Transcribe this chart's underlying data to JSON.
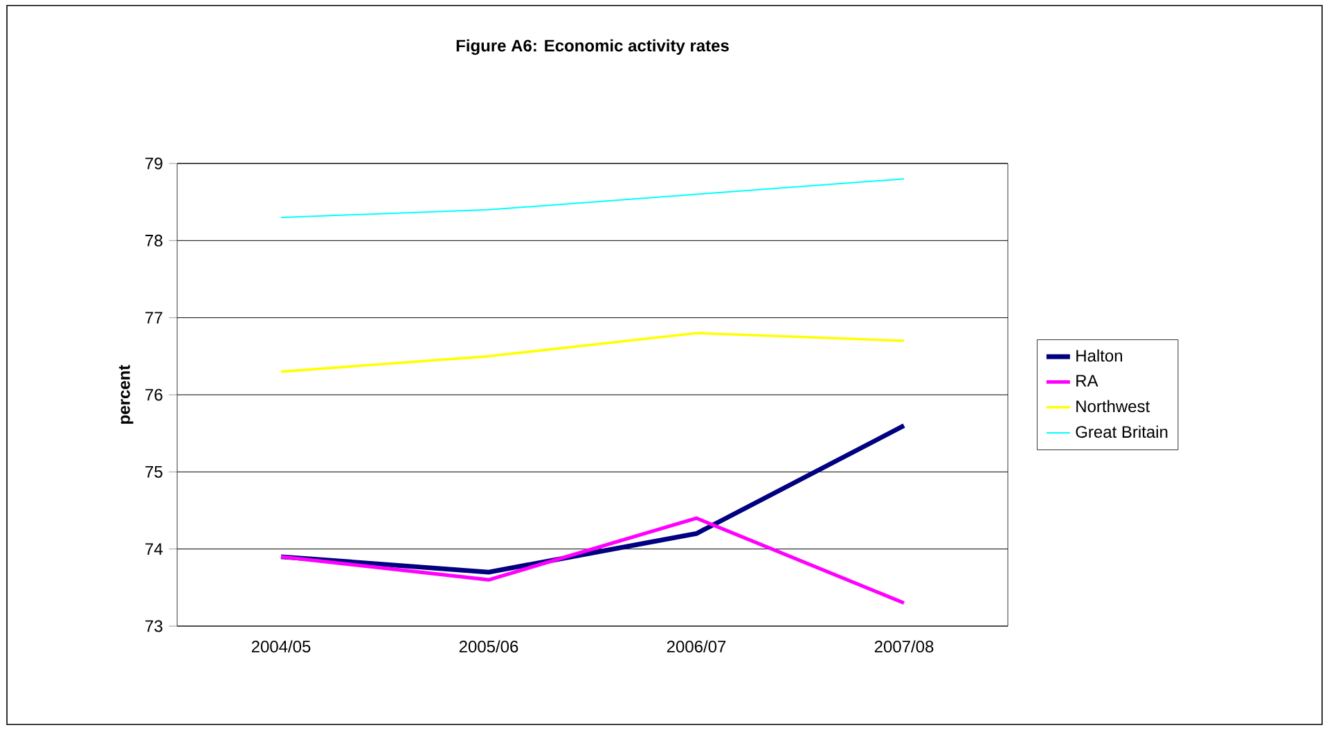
{
  "chart_data": {
    "type": "line",
    "title": "Figure A6: Economic activity rates",
    "ylabel": "percent",
    "categories": [
      "2004/05",
      "2005/06",
      "2006/07",
      "2007/08"
    ],
    "series": [
      {
        "name": "Halton",
        "color": "#000080",
        "values": [
          73.9,
          73.7,
          74.2,
          75.6
        ]
      },
      {
        "name": "RA",
        "color": "#ff00ff",
        "values": [
          73.9,
          73.6,
          74.4,
          73.3
        ]
      },
      {
        "name": "Northwest",
        "color": "#ffff00",
        "values": [
          76.3,
          76.5,
          76.8,
          76.7
        ]
      },
      {
        "name": "Great Britain",
        "color": "#00ffff",
        "values": [
          78.3,
          78.4,
          78.6,
          78.8
        ]
      }
    ],
    "ylim": [
      73,
      79
    ],
    "yticks": [
      73,
      74,
      75,
      76,
      77,
      78,
      79
    ],
    "grid": "y",
    "legend": "right",
    "marker": "none",
    "line_style": "solid"
  }
}
